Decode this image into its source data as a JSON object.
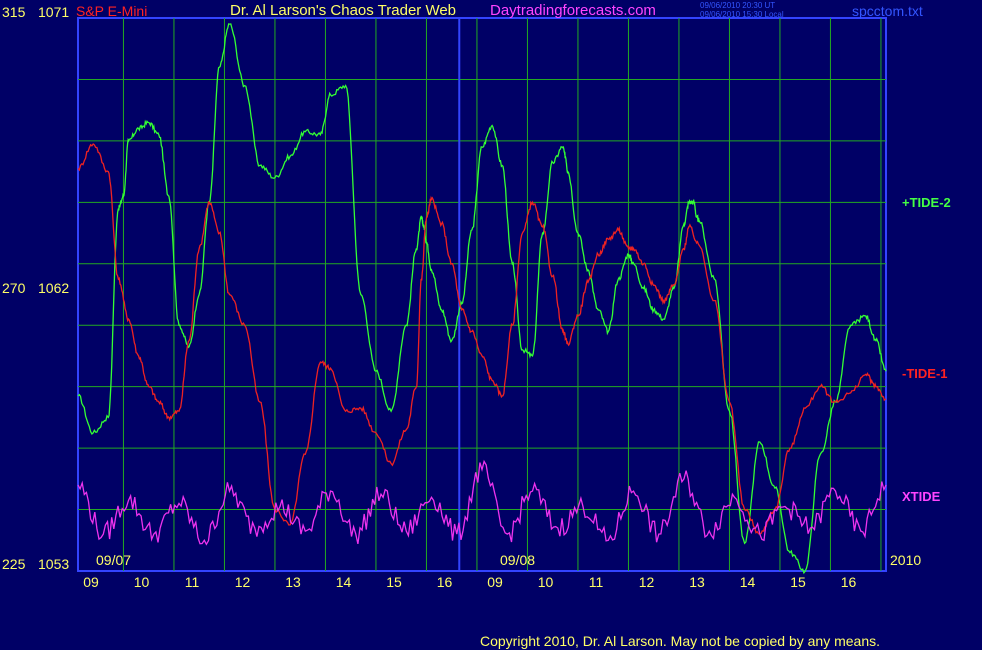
{
  "header": {
    "symbol": "S&P E-Mini",
    "title": "Dr. Al Larson's Chaos Trader Web",
    "website": "Daytradingforecasts.com",
    "ut_stamp": "09/06/2010 20:30 UT",
    "local_stamp": "09/06/2010 15:30 Local",
    "file": "spcctom.txt"
  },
  "footer": {
    "copyright": "Copyright 2010, Dr. Al Larson. May not be copied by any means.",
    "year": "2010"
  },
  "colors": {
    "background": "#000066",
    "grid": "#22aa22",
    "tide2": "#33ff33",
    "tide1": "#ee2222",
    "xtide": "#ee33ee",
    "axis_text": "#ffff66",
    "date_divider": "#3344ff"
  },
  "chart_data": {
    "type": "line",
    "title": "",
    "y_left_scale_labels": [
      "315",
      "270",
      "225"
    ],
    "y_right_scale_labels": [
      "1071",
      "1062",
      "1053"
    ],
    "ylim_price": [
      1053,
      1071
    ],
    "ylim_index": [
      225,
      315
    ],
    "grid": true,
    "x_ticks": [
      "09",
      "10",
      "11",
      "12",
      "13",
      "14",
      "15",
      "16",
      "09",
      "10",
      "11",
      "12",
      "13",
      "14",
      "15",
      "16"
    ],
    "date_labels": [
      "09/07",
      "09/08"
    ],
    "series": [
      {
        "name": "+TIDE-2",
        "color": "#33ff33",
        "x": [
          0,
          0.3,
          0.6,
          0.8,
          0.9,
          1.0,
          1.2,
          1.4,
          1.6,
          1.8,
          2.0,
          2.2,
          2.4,
          2.6,
          2.8,
          3.0,
          3.3,
          3.6,
          3.9,
          4.2,
          4.5,
          4.8,
          5.0,
          5.3,
          5.6,
          5.9,
          6.2,
          6.5,
          6.7,
          6.8,
          6.85,
          6.9,
          7.0,
          7.2,
          7.4,
          7.6,
          7.8,
          8.0,
          8.2,
          8.4,
          8.6,
          8.8,
          9.0,
          9.2,
          9.4,
          9.6,
          9.65,
          9.7,
          9.9,
          10.1,
          10.3,
          10.5,
          10.7,
          10.9,
          11.0,
          11.2,
          11.4,
          11.6,
          11.8,
          12.0,
          12.1,
          12.2,
          12.25,
          12.3,
          12.6,
          12.9,
          13.2,
          13.5,
          13.8,
          14.1,
          14.4,
          14.7,
          15.0,
          15.3,
          15.6,
          15.8,
          16.0
        ],
        "y": [
          1058.7,
          1057.5,
          1058.0,
          1064.8,
          1065.2,
          1067.0,
          1067.4,
          1067.6,
          1067.2,
          1065.2,
          1061.0,
          1060.3,
          1062.0,
          1065.0,
          1069.4,
          1070.8,
          1068.8,
          1066.2,
          1065.8,
          1066.5,
          1067.3,
          1067.2,
          1068.5,
          1068.8,
          1062.0,
          1059.5,
          1058.2,
          1061.0,
          1063.5,
          1064.5,
          1064.2,
          1063.7,
          1062.8,
          1061.5,
          1060.5,
          1061.7,
          1064.1,
          1066.8,
          1067.5,
          1066.2,
          1063.0,
          1060.2,
          1060.0,
          1064.0,
          1066.3,
          1066.8,
          1066.5,
          1066.0,
          1064.0,
          1062.8,
          1061.5,
          1060.8,
          1062.5,
          1063.3,
          1063.0,
          1062.2,
          1061.5,
          1061.2,
          1062.2,
          1064.3,
          1065.0,
          1065.0,
          1064.5,
          1064.4,
          1062.5,
          1058.2,
          1053.9,
          1057.2,
          1055.7,
          1053.6,
          1053.0,
          1056.8,
          1058.5,
          1061.0,
          1061.3,
          1060.5,
          1059.5
        ]
      },
      {
        "name": "-TIDE-1",
        "color": "#ee2222",
        "x": [
          0,
          0.3,
          0.6,
          0.8,
          1.0,
          1.2,
          1.4,
          1.6,
          1.8,
          2.0,
          2.2,
          2.4,
          2.6,
          2.8,
          3.0,
          3.3,
          3.6,
          3.9,
          4.2,
          4.5,
          4.8,
          5.0,
          5.3,
          5.6,
          5.9,
          6.2,
          6.5,
          6.7,
          6.8,
          6.9,
          7.0,
          7.2,
          7.4,
          7.6,
          7.8,
          8.0,
          8.2,
          8.4,
          8.6,
          8.8,
          9.0,
          9.2,
          9.4,
          9.6,
          9.7,
          9.9,
          10.1,
          10.3,
          10.5,
          10.7,
          10.9,
          11.0,
          11.2,
          11.4,
          11.6,
          11.8,
          12.0,
          12.1,
          12.3,
          12.6,
          12.9,
          13.2,
          13.5,
          13.8,
          14.1,
          14.4,
          14.7,
          15.0,
          15.3,
          15.6,
          15.8,
          16.0
        ],
        "y": [
          1066.1,
          1066.9,
          1066.0,
          1062.5,
          1061.2,
          1060.0,
          1059.0,
          1058.5,
          1058.0,
          1058.2,
          1060.5,
          1063.5,
          1065.0,
          1064.0,
          1062.0,
          1061.0,
          1058.5,
          1055.0,
          1054.5,
          1056.8,
          1059.8,
          1059.6,
          1058.2,
          1058.3,
          1057.5,
          1056.5,
          1057.6,
          1059.0,
          1062.5,
          1064.5,
          1065.1,
          1064.3,
          1063.0,
          1061.5,
          1060.8,
          1060.0,
          1059.2,
          1058.7,
          1061.0,
          1064.0,
          1065.0,
          1064.2,
          1062.6,
          1060.8,
          1060.4,
          1061.3,
          1062.4,
          1063.3,
          1063.8,
          1064.1,
          1063.5,
          1063.5,
          1063.0,
          1062.3,
          1061.8,
          1062.3,
          1063.5,
          1064.2,
          1063.6,
          1061.8,
          1058.5,
          1055.0,
          1054.2,
          1055.0,
          1057.0,
          1058.3,
          1059.0,
          1058.5,
          1058.8,
          1059.4,
          1059.0,
          1058.6
        ]
      },
      {
        "name": "XTIDE",
        "color": "#ee33ee",
        "x": [
          0,
          0.5,
          1,
          1.5,
          2,
          2.5,
          3,
          3.5,
          4,
          4.5,
          5,
          5.5,
          6,
          6.5,
          7,
          7.5,
          8,
          8.5,
          9,
          9.5,
          10,
          10.5,
          11,
          11.5,
          12,
          12.5,
          13,
          13.5,
          14,
          14.5,
          15,
          15.5,
          16
        ],
        "y": [
          1055.8,
          1054.2,
          1055.3,
          1054.2,
          1055.2,
          1054.0,
          1055.6,
          1054.4,
          1055.1,
          1054.3,
          1055.6,
          1054.2,
          1055.5,
          1054.3,
          1055.4,
          1054.2,
          1056.3,
          1054.2,
          1055.6,
          1054.4,
          1055.1,
          1054.0,
          1055.6,
          1054.2,
          1056.0,
          1054.3,
          1055.4,
          1054.2,
          1055.1,
          1054.4,
          1055.6,
          1054.3,
          1055.8
        ]
      }
    ]
  }
}
